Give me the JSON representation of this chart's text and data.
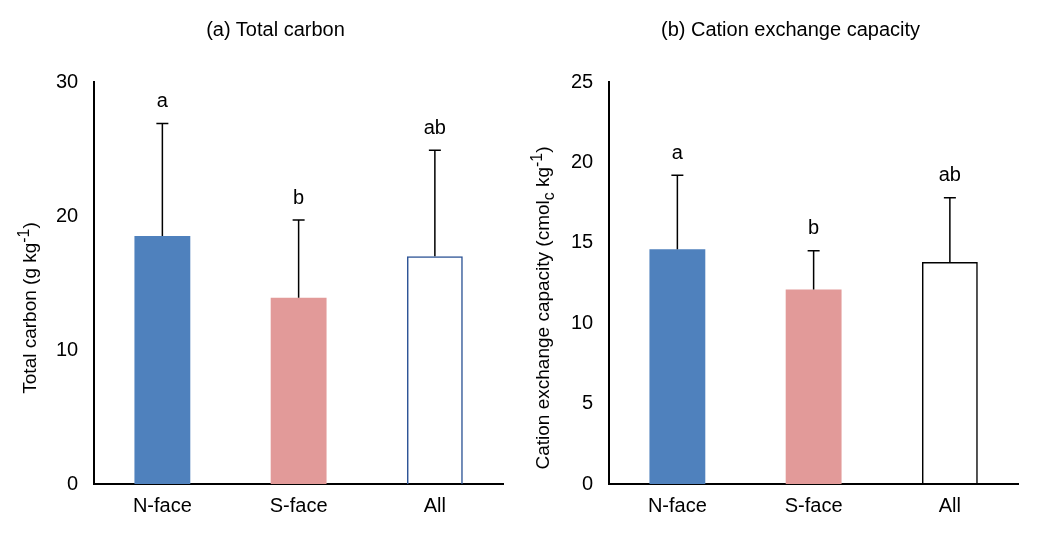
{
  "chart_data": [
    {
      "type": "bar",
      "title": "(a) Total carbon",
      "ylabel": "Total carbon (g kg$^{-1}$)",
      "categories": [
        "N-face",
        "S-face",
        "All"
      ],
      "values": [
        18.5,
        13.9,
        17.0
      ],
      "colors": [
        "#4f81bd",
        "#e29a99",
        "#2f5597"
      ],
      "errors": [
        [
          18.5,
          26.9
        ],
        [
          13.9,
          19.7
        ],
        [
          17.0,
          24.9
        ]
      ],
      "ylim": [
        0,
        30
      ],
      "yticks": [
        0,
        10,
        20,
        30
      ],
      "grid": false,
      "legend": false,
      "annotations": [
        "a",
        "b",
        "ab"
      ]
    },
    {
      "type": "bar",
      "title": "(b) Cation exchange capacity",
      "ylabel": "Cation exchange capacity (cmol$_{c}$ kg$^{-1}$)",
      "categories": [
        "N-face",
        "S-face",
        "All"
      ],
      "values": [
        14.6,
        12.1,
        13.8
      ],
      "colors": [
        "#4f81bd",
        "#e29a99",
        "#000000"
      ],
      "errors": [
        [
          14.6,
          19.2
        ],
        [
          12.1,
          14.5
        ],
        [
          13.8,
          17.8
        ]
      ],
      "ylim": [
        0,
        25
      ],
      "yticks": [
        0,
        5,
        10,
        15,
        20,
        25
      ],
      "grid": false,
      "legend": false,
      "annotations": [
        "a",
        "b",
        "ab"
      ]
    }
  ]
}
